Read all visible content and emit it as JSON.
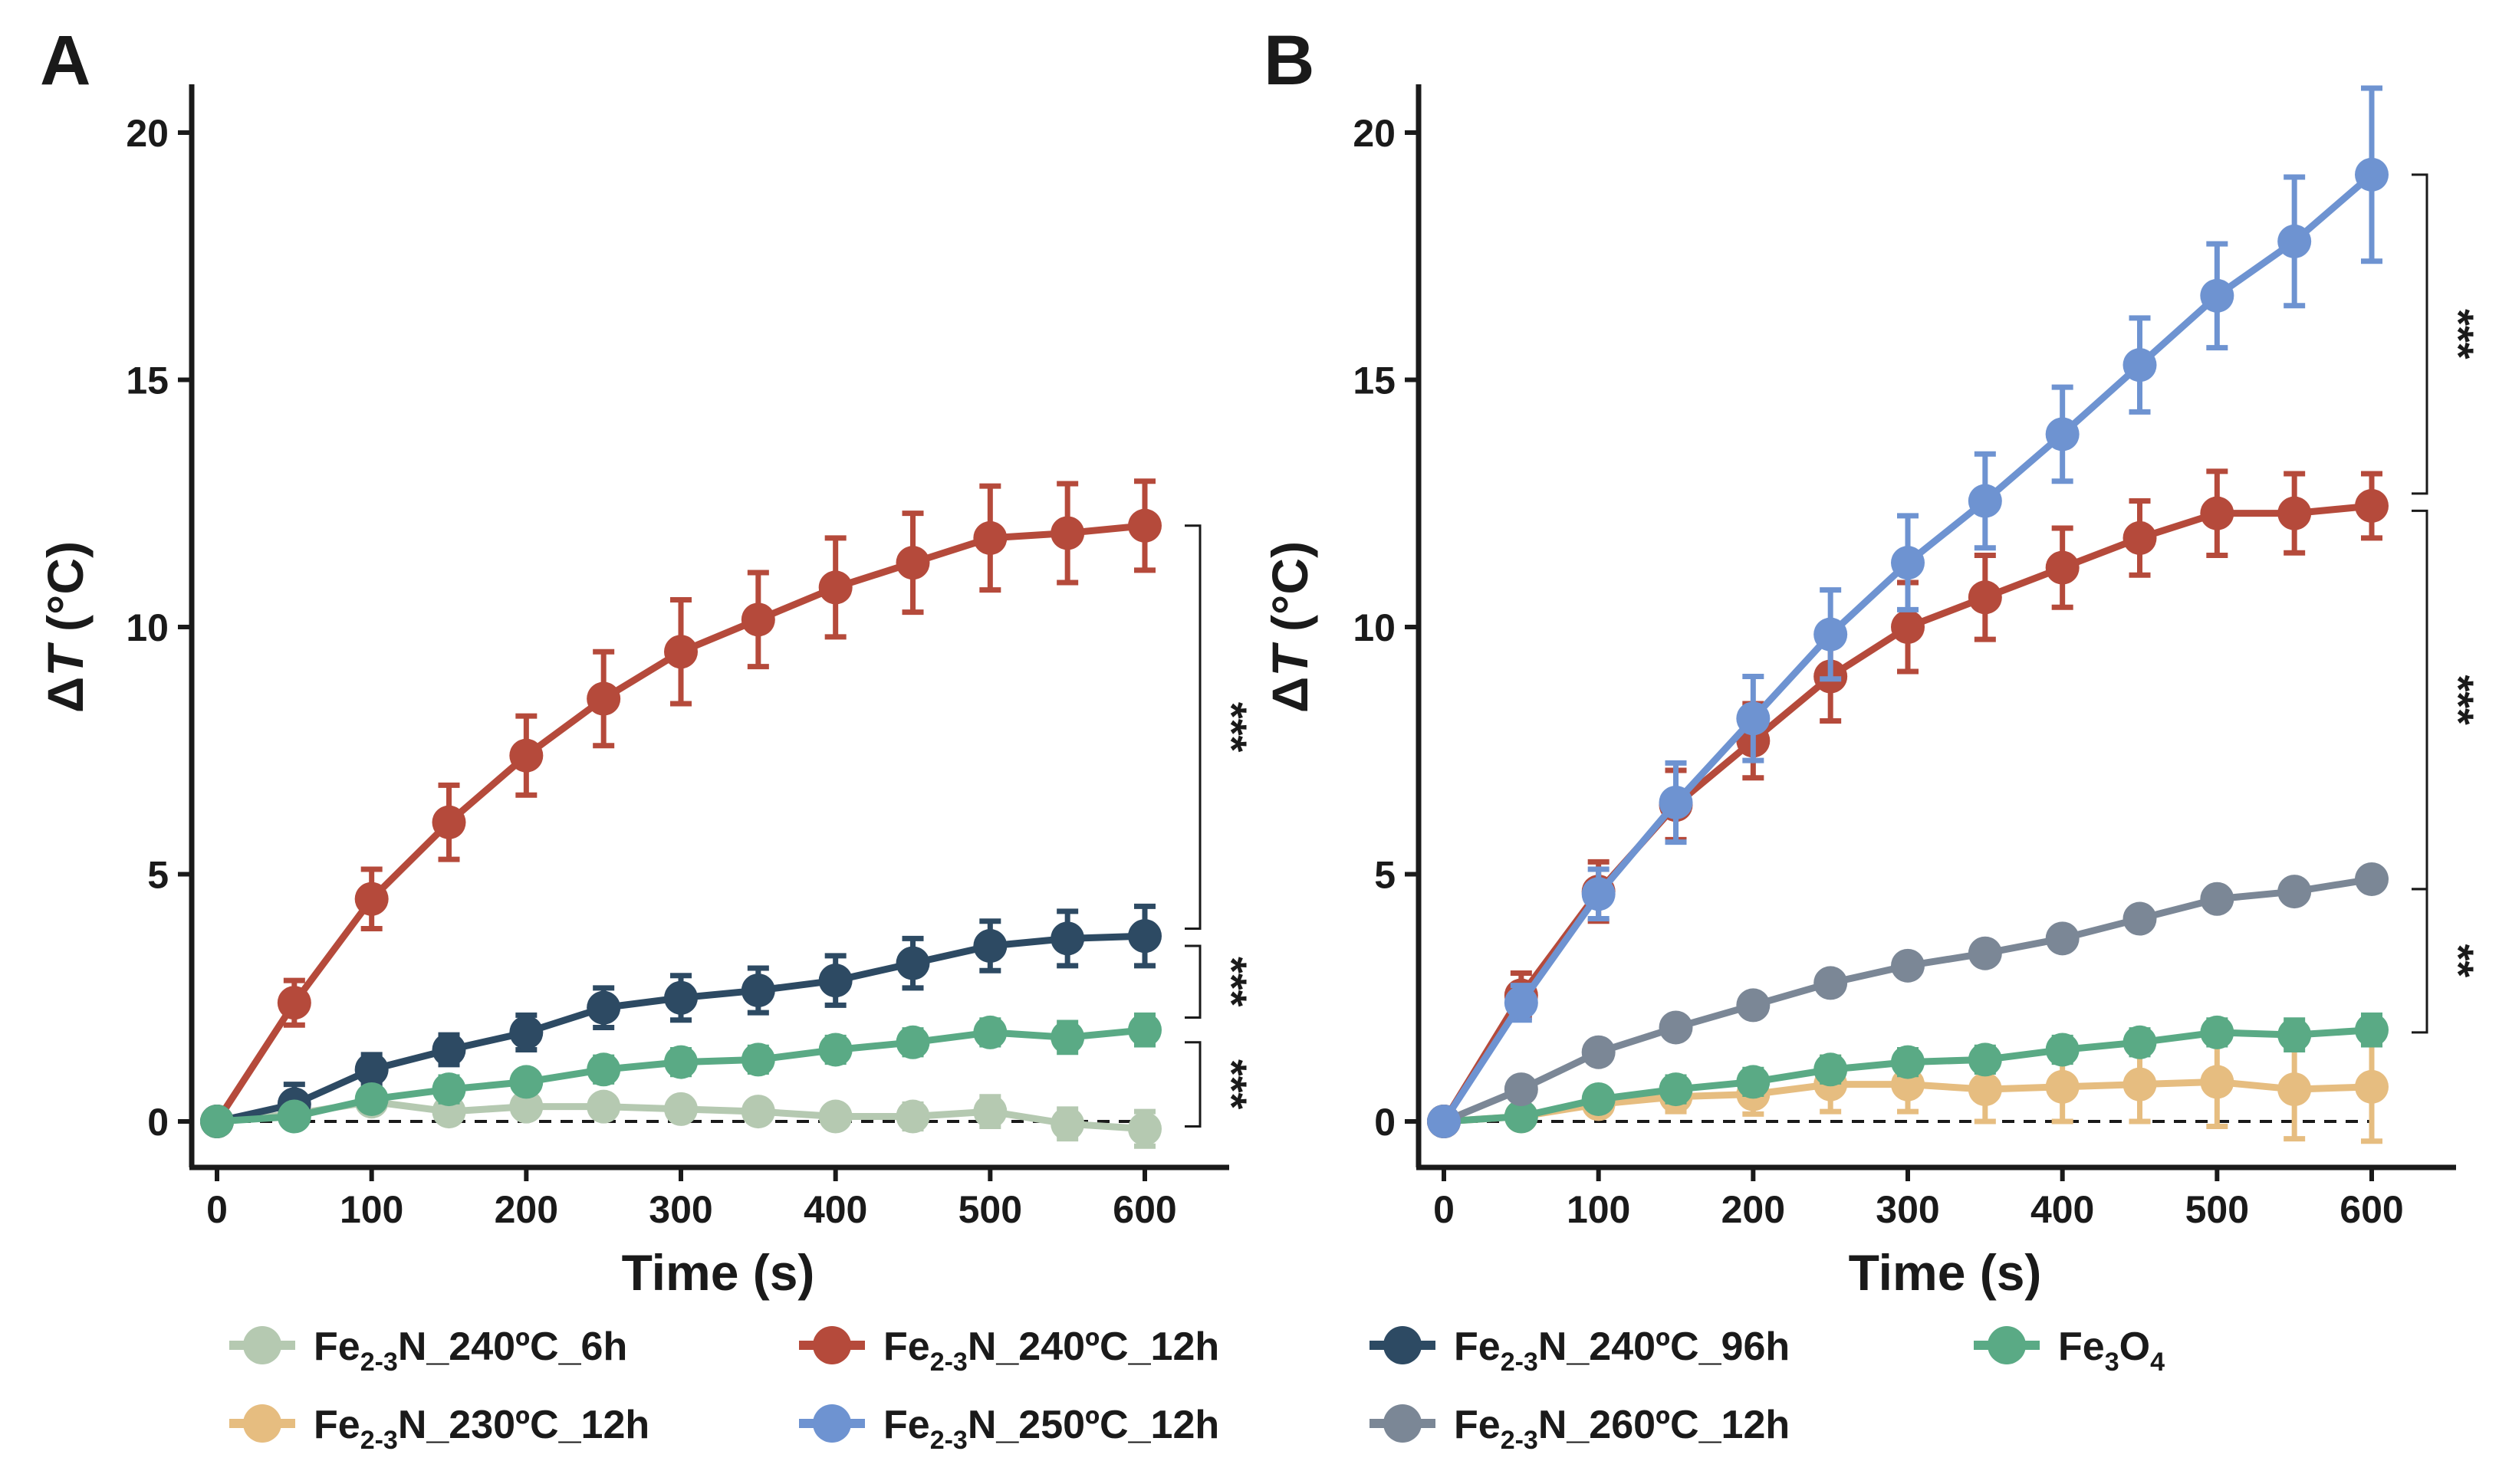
{
  "chart_data": [
    {
      "panel": "A",
      "type": "line",
      "xlabel": "Time (s)",
      "ylabel": "ΔT (°C)",
      "xlim": [
        -10,
        650
      ],
      "ylim": [
        -1,
        21
      ],
      "xticks": [
        0,
        100,
        200,
        300,
        400,
        500,
        600
      ],
      "yticks": [
        0,
        5,
        10,
        15,
        20
      ],
      "x": [
        0,
        50,
        100,
        150,
        200,
        250,
        300,
        350,
        400,
        450,
        500,
        550,
        600
      ],
      "reference_line": 0,
      "series": [
        {
          "key": "s240_6",
          "values": [
            0,
            0.15,
            0.4,
            0.2,
            0.3,
            0.3,
            0.25,
            0.2,
            0.1,
            0.1,
            0.2,
            -0.05,
            -0.15
          ],
          "errors": [
            0,
            0.15,
            0.2,
            0.2,
            0.15,
            0.15,
            0.2,
            0.2,
            0.2,
            0.25,
            0.3,
            0.3,
            0.35
          ]
        },
        {
          "key": "s240_12",
          "values": [
            0,
            2.4,
            4.5,
            6.05,
            7.4,
            8.55,
            9.5,
            10.15,
            10.8,
            11.3,
            11.8,
            11.9,
            12.05
          ],
          "errors": [
            0,
            0.45,
            0.6,
            0.75,
            0.8,
            0.95,
            1.05,
            0.95,
            1.0,
            1.0,
            1.05,
            1.0,
            0.9
          ]
        },
        {
          "key": "s240_96",
          "values": [
            0,
            0.35,
            1.05,
            1.45,
            1.8,
            2.3,
            2.5,
            2.65,
            2.85,
            3.2,
            3.55,
            3.7,
            3.75
          ],
          "errors": [
            0,
            0.4,
            0.3,
            0.3,
            0.35,
            0.4,
            0.45,
            0.45,
            0.5,
            0.5,
            0.5,
            0.55,
            0.6
          ]
        },
        {
          "key": "fe3o4",
          "values": [
            0,
            0.1,
            0.45,
            0.65,
            0.8,
            1.05,
            1.2,
            1.25,
            1.45,
            1.6,
            1.8,
            1.7,
            1.85
          ],
          "errors": [
            0,
            0.15,
            0.2,
            0.25,
            0.2,
            0.25,
            0.25,
            0.25,
            0.25,
            0.25,
            0.25,
            0.3,
            0.3
          ]
        }
      ],
      "significance": [
        {
          "label": "***",
          "y_top": 12.05,
          "y_bottom": 3.9
        },
        {
          "label": "***",
          "y_top": 3.55,
          "y_bottom": 2.1
        },
        {
          "label": "***",
          "y_top": 1.6,
          "y_bottom": -0.1
        }
      ]
    },
    {
      "panel": "B",
      "type": "line",
      "xlabel": "Time (s)",
      "ylabel": "ΔT (°C)",
      "xlim": [
        -10,
        650
      ],
      "ylim": [
        -1,
        21
      ],
      "xticks": [
        0,
        100,
        200,
        300,
        400,
        500,
        600
      ],
      "yticks": [
        0,
        5,
        10,
        15,
        20
      ],
      "x": [
        0,
        50,
        100,
        150,
        200,
        250,
        300,
        350,
        400,
        450,
        500,
        550,
        600
      ],
      "reference_line": 0,
      "series": [
        {
          "key": "s230_12",
          "values": [
            0,
            0.1,
            0.35,
            0.5,
            0.55,
            0.75,
            0.75,
            0.65,
            0.7,
            0.75,
            0.8,
            0.65,
            0.7
          ],
          "errors": [
            0,
            0.1,
            0.2,
            0.3,
            0.4,
            0.55,
            0.55,
            0.65,
            0.7,
            0.75,
            0.9,
            1.0,
            1.1
          ]
        },
        {
          "key": "fe3o4",
          "values": [
            0,
            0.1,
            0.45,
            0.65,
            0.8,
            1.05,
            1.2,
            1.25,
            1.45,
            1.6,
            1.8,
            1.75,
            1.85
          ],
          "errors": [
            0,
            0.1,
            0.2,
            0.25,
            0.25,
            0.25,
            0.25,
            0.25,
            0.25,
            0.25,
            0.25,
            0.3,
            0.3
          ]
        },
        {
          "key": "s260_12",
          "values": [
            0,
            0.65,
            1.4,
            1.9,
            2.35,
            2.8,
            3.15,
            3.4,
            3.7,
            4.1,
            4.5,
            4.65,
            4.9
          ],
          "errors": [
            0,
            0.1,
            0.15,
            0.15,
            0.15,
            0.15,
            0.15,
            0.15,
            0.15,
            0.15,
            0.15,
            0.15,
            0.15
          ]
        },
        {
          "key": "s240_12",
          "values": [
            0,
            2.55,
            4.65,
            6.4,
            7.7,
            9.0,
            10.0,
            10.6,
            11.2,
            11.8,
            12.3,
            12.3,
            12.45
          ],
          "errors": [
            0,
            0.45,
            0.6,
            0.7,
            0.75,
            0.9,
            0.9,
            0.85,
            0.8,
            0.75,
            0.85,
            0.8,
            0.65
          ]
        },
        {
          "key": "s250_12",
          "values": [
            0,
            2.4,
            4.6,
            6.45,
            8.15,
            9.85,
            11.3,
            12.55,
            13.9,
            15.3,
            16.7,
            17.8,
            19.15
          ],
          "errors": [
            0,
            0.35,
            0.5,
            0.8,
            0.85,
            0.9,
            0.95,
            0.95,
            0.95,
            0.95,
            1.05,
            1.3,
            1.75
          ]
        }
      ],
      "significance": [
        {
          "label": "***",
          "y_top": 19.15,
          "y_bottom": 12.7
        },
        {
          "label": "***",
          "y_top": 12.35,
          "y_bottom": 4.7
        },
        {
          "label": "**",
          "y_top": 4.7,
          "y_bottom": 1.8
        }
      ]
    }
  ],
  "legend": {
    "position": "bottom",
    "items": [
      {
        "key": "s240_6",
        "main": "Fe",
        "sub": "2-3",
        "rest": "N_240ºC_6h",
        "color": "#b5c9b1"
      },
      {
        "key": "s240_12",
        "main": "Fe",
        "sub": "2-3",
        "rest": "N_240ºC_12h",
        "color": "#b54a3b"
      },
      {
        "key": "s240_96",
        "main": "Fe",
        "sub": "2-3",
        "rest": "N_240ºC_96h",
        "color": "#2d4a63"
      },
      {
        "key": "fe3o4",
        "main": "Fe",
        "sub": "3",
        "rest": "O",
        "sub2": "4",
        "color": "#5aaa85"
      },
      {
        "key": "s230_12",
        "main": "Fe",
        "sub": "2-3",
        "rest": "N_230ºC_12h",
        "color": "#e6bd80"
      },
      {
        "key": "s250_12",
        "main": "Fe",
        "sub": "2-3",
        "rest": "N_250ºC_12h",
        "color": "#6e93d1"
      },
      {
        "key": "s260_12",
        "main": "Fe",
        "sub": "2-3",
        "rest": "N_260ºC_12h",
        "color": "#7b8796"
      }
    ]
  }
}
